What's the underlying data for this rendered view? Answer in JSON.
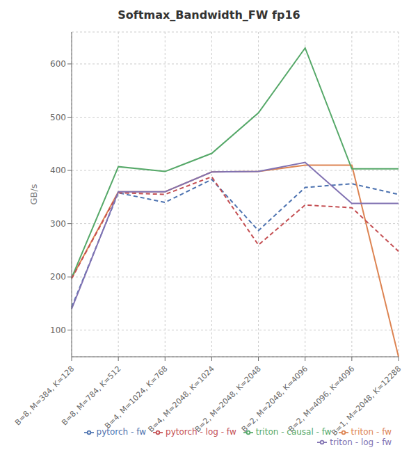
{
  "chart_data": {
    "type": "line",
    "title": "Softmax_Bandwidth_FW fp16",
    "y_label": "GB/s",
    "categories": [
      "B=8, M=384, K=128",
      "B=8, M=784, K=512",
      "B=4, M=1024, K=768",
      "B=4, M=2048, K=1024",
      "B=2, M=2048, K=2048",
      "B=2, M=2048, K=4096",
      "B=2, M=4096, K=4096",
      "B=1, M=2048, K=12288"
    ],
    "series": [
      {
        "name": "pytorch - fw",
        "color": "#4c72b0",
        "line_style": "dashed",
        "values": [
          143,
          358,
          340,
          383,
          287,
          368,
          375,
          355
        ]
      },
      {
        "name": "triton - fw",
        "color": "#dd8452",
        "line_style": "solid",
        "values": [
          198,
          360,
          360,
          397,
          398,
          410,
          410,
          50
        ]
      },
      {
        "name": "triton - causal - fw",
        "color": "#55a868",
        "line_style": "solid",
        "values": [
          198,
          407,
          398,
          432,
          508,
          630,
          403,
          403
        ]
      },
      {
        "name": "pytorch - log - fw",
        "color": "#c44e52",
        "line_style": "dashed",
        "values": [
          197,
          358,
          355,
          388,
          260,
          335,
          330,
          248
        ]
      },
      {
        "name": "triton - log - fw",
        "color": "#8172b2",
        "line_style": "solid",
        "values": [
          140,
          360,
          360,
          397,
          398,
          415,
          338,
          338
        ]
      }
    ],
    "ylim": [
      50,
      660
    ],
    "yticks": [
      100,
      200,
      300,
      400,
      500,
      600
    ],
    "grid": true,
    "legend": "lower right"
  }
}
